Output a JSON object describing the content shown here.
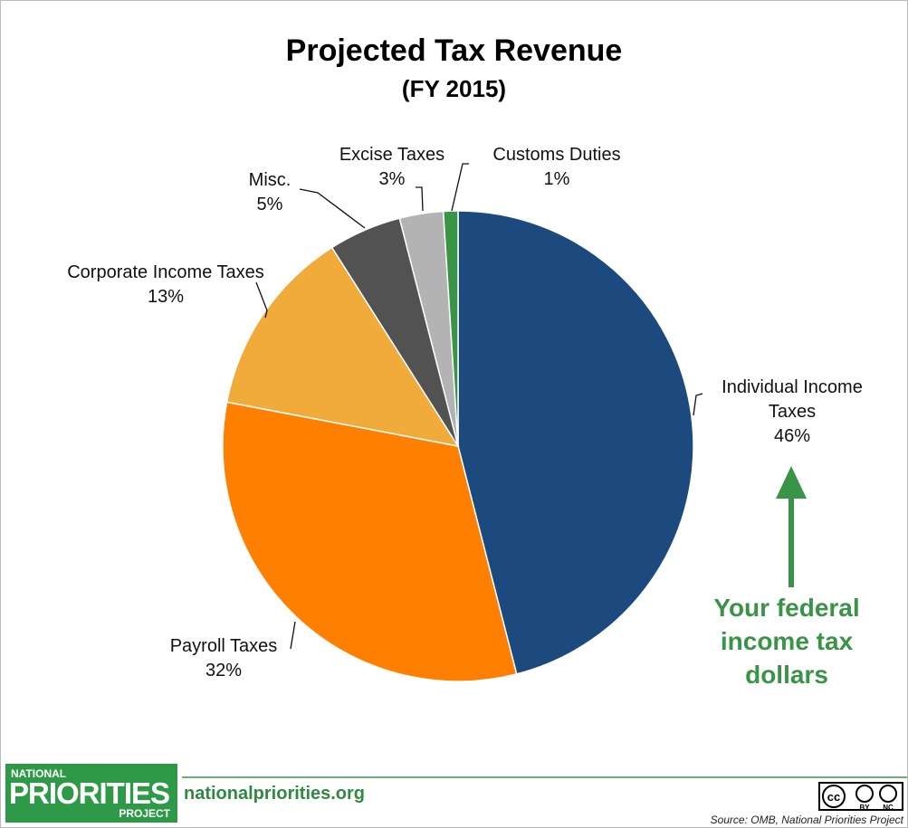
{
  "chart_data": {
    "type": "pie",
    "title": "Projected Tax Revenue",
    "subtitle": "(FY 2015)",
    "categories": [
      "Individual Income Taxes",
      "Payroll Taxes",
      "Corporate Income Taxes",
      "Misc.",
      "Excise Taxes",
      "Customs Duties"
    ],
    "values": [
      46,
      32,
      13,
      5,
      3,
      1
    ],
    "value_labels": [
      "46%",
      "32%",
      "13%",
      "5%",
      "3%",
      "1%"
    ],
    "colors": [
      "#1c4a7e",
      "#ff8000",
      "#f0ab3a",
      "#525252",
      "#b3b3b3",
      "#3a9447"
    ],
    "annotation": "Your federal income tax dollars"
  },
  "footer": {
    "logo": [
      "NATIONAL",
      "PRIORITIES",
      "PROJECT"
    ],
    "website": "nationalpriorities.org",
    "license": [
      "cc",
      "BY",
      "NC"
    ],
    "source": "Source: OMB, National Priorities Project"
  }
}
